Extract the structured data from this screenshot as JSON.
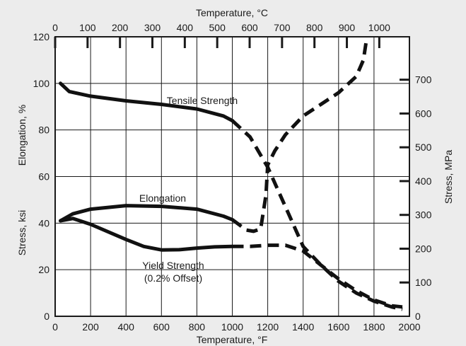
{
  "chart_data": {
    "type": "line",
    "title": "",
    "xlabel": "Temperature, °F",
    "x2label": "Temperature, °C",
    "ylabel_stress": "Stress, ksi",
    "ylabel_elong": "Elongation, %",
    "y2label": "Stress, MPa",
    "xlim": [
      0,
      2000
    ],
    "ylim": [
      0,
      120
    ],
    "x2lim": [
      0,
      1093
    ],
    "y2lim": [
      0,
      827
    ],
    "grid": true,
    "x_ticks": [
      "0",
      "200",
      "400",
      "600",
      "800",
      "1000",
      "1200",
      "1400",
      "1600",
      "1800",
      "2000"
    ],
    "y_ticks": [
      "0",
      "20",
      "40",
      "60",
      "80",
      "100",
      "120"
    ],
    "x2_ticks": [
      "0",
      "100",
      "200",
      "300",
      "400",
      "500",
      "600",
      "700",
      "800",
      "900",
      "1000"
    ],
    "y2_ticks": [
      "0",
      "100",
      "200",
      "300",
      "400",
      "500",
      "600",
      "700"
    ],
    "annotations": {
      "tensile": "Tensile Strength",
      "elongation": "Elongation",
      "yield_line1": "Yield Strength",
      "yield_line2": "(0.2% Offset)"
    },
    "series": [
      {
        "name": "Tensile Strength",
        "solid": [
          [
            30,
            100
          ],
          [
            80,
            96.5
          ],
          [
            200,
            94.5
          ],
          [
            400,
            92.5
          ],
          [
            600,
            91
          ],
          [
            800,
            89
          ],
          [
            950,
            86
          ],
          [
            1000,
            84
          ]
        ],
        "dashed": [
          [
            1000,
            84
          ],
          [
            1100,
            77
          ],
          [
            1200,
            64
          ],
          [
            1300,
            47
          ],
          [
            1400,
            30
          ],
          [
            1500,
            22
          ],
          [
            1600,
            15
          ],
          [
            1700,
            10
          ],
          [
            1800,
            6.5
          ],
          [
            1900,
            4
          ],
          [
            1960,
            3
          ]
        ]
      },
      {
        "name": "Elongation",
        "solid": [
          [
            30,
            41
          ],
          [
            100,
            44
          ],
          [
            200,
            46
          ],
          [
            400,
            47.5
          ],
          [
            600,
            47.2
          ],
          [
            800,
            46
          ],
          [
            950,
            43
          ],
          [
            1000,
            41.5
          ]
        ],
        "dashed": [
          [
            1000,
            41.5
          ],
          [
            1080,
            37
          ],
          [
            1120,
            36.5
          ],
          [
            1160,
            37.5
          ],
          [
            1190,
            52
          ],
          [
            1200,
            65
          ],
          [
            1240,
            71
          ],
          [
            1300,
            78
          ],
          [
            1400,
            86
          ],
          [
            1500,
            91
          ],
          [
            1600,
            96
          ],
          [
            1700,
            103
          ],
          [
            1740,
            110
          ],
          [
            1760,
            120
          ]
        ]
      },
      {
        "name": "Yield Strength (0.2% Offset)",
        "solid": [
          [
            30,
            41
          ],
          [
            100,
            42
          ],
          [
            200,
            39.5
          ],
          [
            400,
            33
          ],
          [
            500,
            30
          ],
          [
            600,
            28.5
          ],
          [
            700,
            28.6
          ],
          [
            800,
            29.3
          ],
          [
            900,
            29.8
          ],
          [
            1000,
            30
          ]
        ],
        "dashed": [
          [
            1000,
            30
          ],
          [
            1100,
            30
          ],
          [
            1200,
            30.5
          ],
          [
            1300,
            30.5
          ],
          [
            1400,
            28
          ],
          [
            1500,
            22
          ],
          [
            1600,
            16
          ],
          [
            1700,
            11
          ],
          [
            1800,
            7
          ],
          [
            1900,
            4.5
          ],
          [
            1960,
            4
          ]
        ]
      }
    ]
  }
}
